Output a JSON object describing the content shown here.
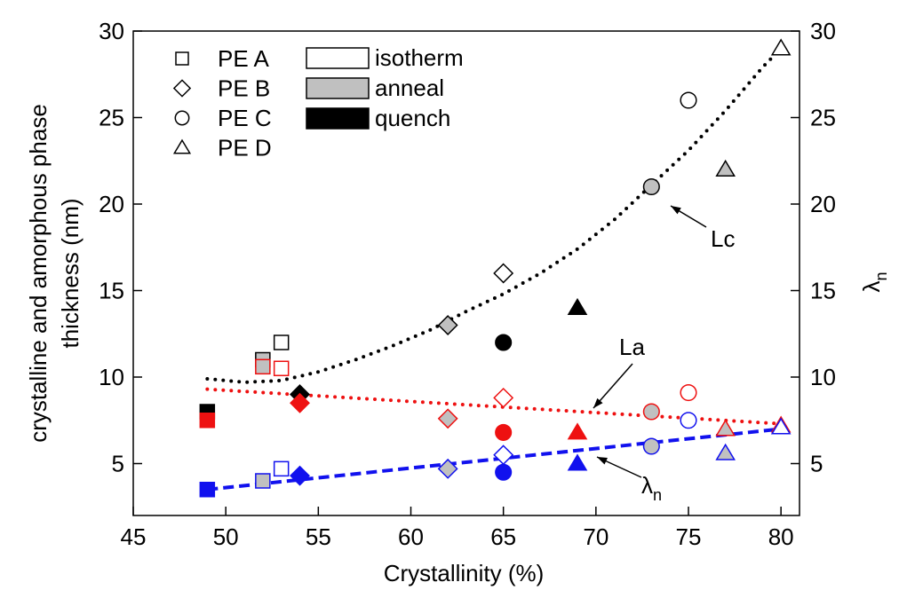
{
  "chart_data": {
    "type": "scatter",
    "x_label": "Crystallinity (%)",
    "y_label": [
      "crystalline and amorphous phase",
      "thickness (nm)"
    ],
    "y2_label": {
      "text": "λ",
      "subscript": "n"
    },
    "xlim": [
      45,
      81
    ],
    "xticks": [
      45,
      50,
      55,
      60,
      65,
      70,
      75,
      80
    ],
    "ylim": [
      2,
      30
    ],
    "yticks": [
      5,
      10,
      15,
      20,
      25,
      30
    ],
    "y2lim": [
      2,
      30
    ],
    "y2ticks": [
      5,
      10,
      15,
      20,
      25,
      30
    ],
    "legend_samples": [
      {
        "label": "PE A",
        "marker": "square"
      },
      {
        "label": "PE B",
        "marker": "diamond"
      },
      {
        "label": "PE C",
        "marker": "circle"
      },
      {
        "label": "PE D",
        "marker": "triangle"
      }
    ],
    "legend_treatments": [
      {
        "label": "isotherm",
        "fill": "open"
      },
      {
        "label": "anneal",
        "fill": "gray"
      },
      {
        "label": "quench",
        "fill": "solid"
      }
    ],
    "series": [
      {
        "name": "Lc",
        "color": "#000000",
        "x": [
          49,
          52,
          53,
          54,
          62,
          65,
          65,
          73,
          75,
          69,
          77,
          80
        ],
        "values": [
          8,
          11,
          12,
          9,
          13,
          16,
          12,
          21,
          26,
          14,
          22,
          29
        ],
        "markers": [
          "square",
          "square",
          "square",
          "diamond",
          "diamond",
          "diamond",
          "circle",
          "circle",
          "circle",
          "triangle",
          "triangle",
          "triangle"
        ],
        "fills": [
          "solid",
          "gray",
          "open",
          "solid",
          "gray",
          "open",
          "solid",
          "gray",
          "open",
          "solid",
          "gray",
          "open"
        ]
      },
      {
        "name": "La",
        "color": "#ee1111",
        "x": [
          49,
          52,
          53,
          54,
          62,
          65,
          65,
          73,
          75,
          69,
          77,
          80
        ],
        "values": [
          7.5,
          10.6,
          10.5,
          8.5,
          7.6,
          8.8,
          6.8,
          8.0,
          9.1,
          6.8,
          7.0,
          7.2
        ],
        "markers": [
          "square",
          "square",
          "square",
          "diamond",
          "diamond",
          "diamond",
          "circle",
          "circle",
          "circle",
          "triangle",
          "triangle",
          "triangle"
        ],
        "fills": [
          "solid",
          "gray",
          "open",
          "solid",
          "gray",
          "open",
          "solid",
          "gray",
          "open",
          "solid",
          "gray",
          "open"
        ]
      },
      {
        "name": {
          "text": "λ",
          "subscript": "n"
        },
        "color": "#1111ee",
        "x": [
          49,
          52,
          53,
          54,
          62,
          65,
          65,
          73,
          75,
          69,
          77,
          80
        ],
        "values": [
          3.5,
          4.0,
          4.7,
          4.3,
          4.7,
          5.5,
          4.5,
          6.0,
          7.5,
          5.0,
          5.6,
          7.1
        ],
        "markers": [
          "square",
          "square",
          "square",
          "diamond",
          "diamond",
          "diamond",
          "circle",
          "circle",
          "circle",
          "triangle",
          "triangle",
          "triangle"
        ],
        "fills": [
          "solid",
          "gray",
          "open",
          "solid",
          "gray",
          "open",
          "solid",
          "gray",
          "open",
          "solid",
          "gray",
          "open"
        ]
      }
    ],
    "fits": [
      {
        "color": "#000000",
        "dash": "dotted",
        "x": [
          49,
          51,
          53,
          55,
          57,
          59,
          61,
          63,
          65,
          67,
          69,
          71,
          73,
          75,
          77,
          79,
          80
        ],
        "values": [
          9.9,
          9.7,
          9.8,
          10.3,
          11.0,
          11.8,
          12.7,
          13.8,
          14.8,
          16.0,
          17.4,
          19.1,
          21.1,
          23.1,
          25.4,
          27.9,
          29.0
        ]
      },
      {
        "color": "#ee1111",
        "dash": "dotted",
        "x": [
          49,
          80
        ],
        "values": [
          9.3,
          7.3
        ]
      },
      {
        "color": "#1111ee",
        "dash": "dashed",
        "x": [
          49,
          80
        ],
        "values": [
          3.5,
          7.0
        ]
      }
    ]
  }
}
